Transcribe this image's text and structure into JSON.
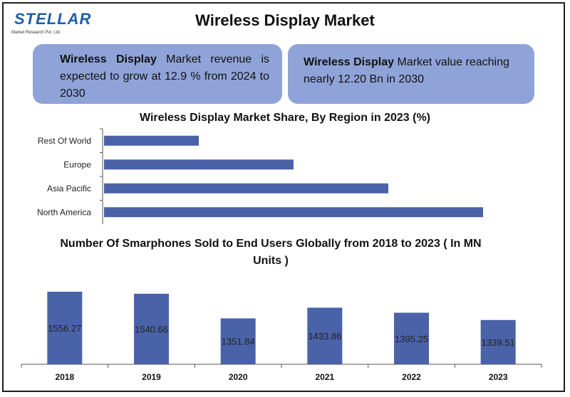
{
  "header": {
    "logo_text": "STELLAR",
    "logo_sub": "Market Research Pvt. Ltd.",
    "title": "Wireless Display Market"
  },
  "info": {
    "box1_bold": "Wireless Display",
    "box1_text": " Market revenue is expected to grow at 12.9 % from 2024 to 2030",
    "box2_bold": "Wireless Display",
    "box2_text": " Market value reaching nearly 12.20 Bn in 2030"
  },
  "colors": {
    "bar": "#4a62a8",
    "box": "#8fa3d8",
    "logo": "#1f5fa8"
  },
  "chart_data": [
    {
      "type": "bar",
      "orientation": "horizontal",
      "title": "Wireless  Display Market Share, By Region in 2023 (%)",
      "categories": [
        "Rest Of World",
        "Europe",
        "Asia Pacific",
        "North America"
      ],
      "values": [
        14,
        28,
        42,
        56
      ],
      "xlim": [
        0,
        60
      ]
    },
    {
      "type": "bar",
      "title": "Number Of Smarphones Sold to End Users Globally from 2018 to 2023 ( In MN Units )",
      "categories": [
        "2018",
        "2019",
        "2020",
        "2021",
        "2022",
        "2023"
      ],
      "values": [
        1556.27,
        1540.66,
        1351.84,
        1433.86,
        1395.25,
        1339.51
      ],
      "labels": [
        "1556.27",
        "1540.66",
        "1351.84",
        "1433.86",
        "1395.25",
        "1339.51"
      ],
      "ylim": [
        1000,
        1600
      ]
    }
  ]
}
